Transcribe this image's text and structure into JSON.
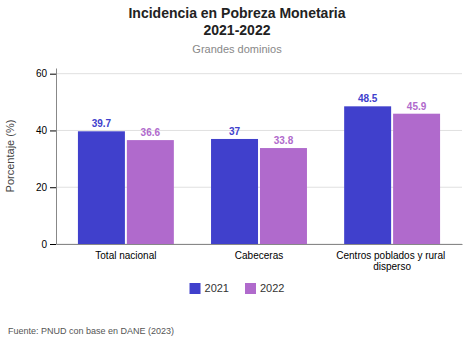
{
  "chart_data": {
    "type": "bar",
    "title": [
      "Incidencia en Pobreza Monetaria",
      "2021-2022"
    ],
    "subtitle": "Grandes dominios",
    "categories": [
      "Total nacional",
      "Cabeceras",
      "Centros poblados y rural disperso"
    ],
    "series": [
      {
        "name": "2021",
        "color": "#4040cc",
        "values": [
          39.7,
          37.0,
          48.5
        ]
      },
      {
        "name": "2022",
        "color": "#b06acc",
        "values": [
          36.6,
          33.8,
          45.9
        ]
      }
    ],
    "ylabel": "Porcentaje (%)",
    "ylim": [
      0,
      62
    ],
    "yticks": [
      0,
      20,
      40,
      60
    ],
    "grid": true,
    "legend": "bottom",
    "data_labels": true,
    "annotations": [
      "Fuente: PNUD con base en DANE (2023)"
    ]
  }
}
